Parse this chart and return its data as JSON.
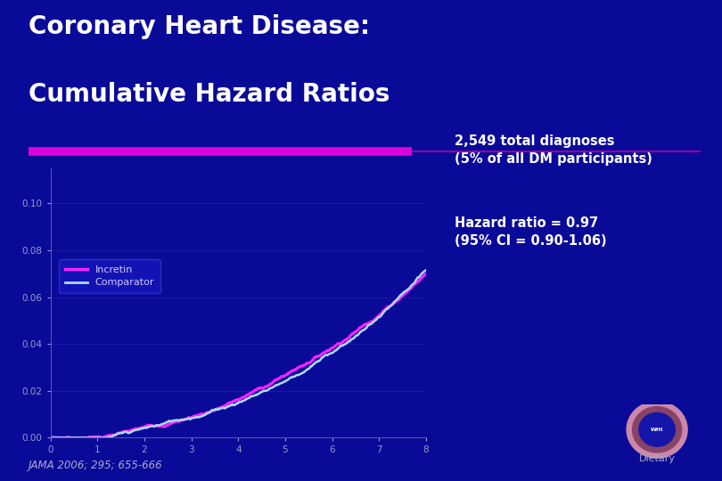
{
  "title_line1": "Coronary Heart Disease:",
  "title_line2": "Cumulative Hazard Ratios",
  "background_color": "#0A0A99",
  "title_color": "#FFFFFF",
  "line1_color": "#FF22FF",
  "line2_color": "#AADDFF",
  "legend_label1": "Incretin",
  "legend_label2": "Comparator",
  "annotation1": "2,549 total diagnoses\n(5% of all DM participants)",
  "annotation2": "Hazard ratio = 0.97\n(95% CI = 0.90-1.06)",
  "footnote": "JAMA 2006; 295; 655-666",
  "logo_text": "Dietary",
  "ylabel_ticks": [
    "0.00",
    "0.02",
    "0.04",
    "0.06",
    "0.08",
    "0.10"
  ],
  "ylabel_vals": [
    0.0,
    0.02,
    0.04,
    0.06,
    0.08,
    0.1
  ],
  "ylim": [
    0.0,
    0.115
  ],
  "xlim": [
    0,
    8
  ]
}
